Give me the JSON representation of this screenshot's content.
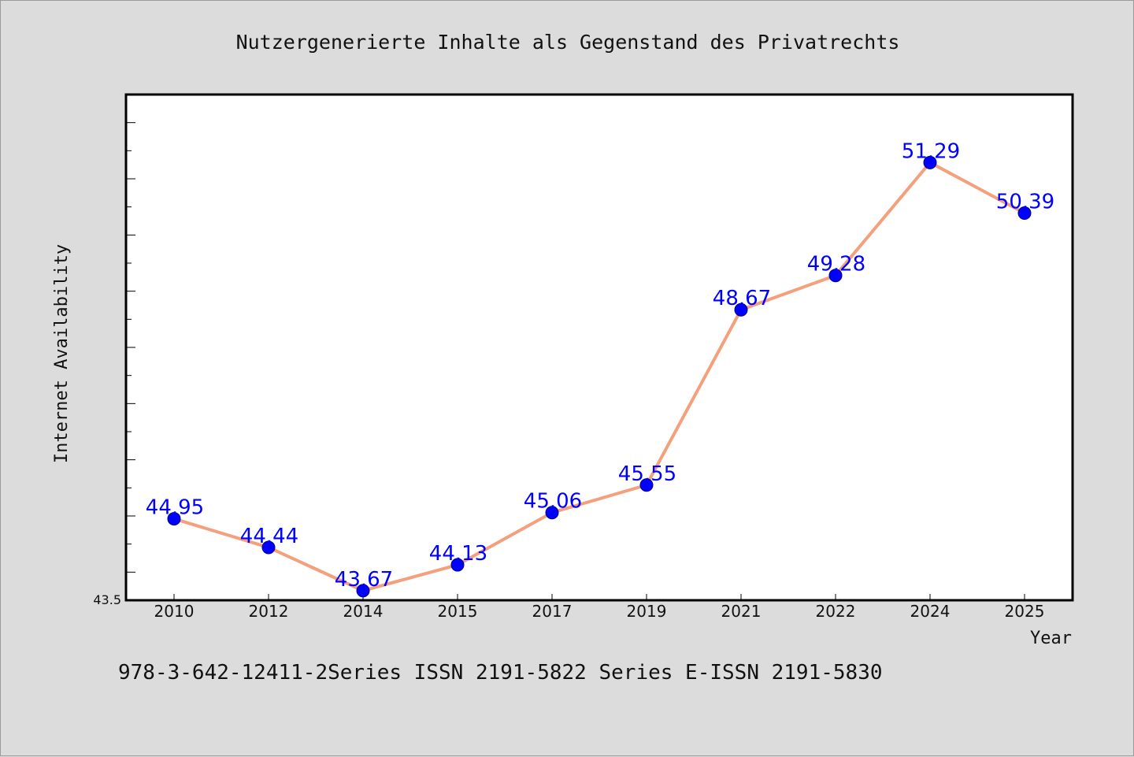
{
  "chart_data": {
    "type": "line",
    "title": "Nutzergenerierte Inhalte als Gegenstand des Privatrechts",
    "xlabel": "Year",
    "ylabel": "Internet Availability",
    "categories": [
      "2010",
      "2012",
      "2014",
      "2015",
      "2017",
      "2019",
      "2021",
      "2022",
      "2024",
      "2025"
    ],
    "series": [
      {
        "values": [
          44.95,
          44.44,
          43.67,
          44.13,
          45.06,
          45.55,
          48.67,
          49.28,
          51.29,
          50.39
        ]
      }
    ],
    "ylim": [
      43.5,
      52.5
    ],
    "y_tick_labels": [
      "43.5"
    ],
    "data_labels": [
      "44.95",
      "44.44",
      "43.67",
      "44.13",
      "45.06",
      "45.55",
      "48.67",
      "49.28",
      "51.29",
      "50.39"
    ],
    "grid": false,
    "line_color": "#f4a07c",
    "marker_color": "#0000ff",
    "label_color": "#0000ff"
  },
  "footer_text": "978-3-642-12411-2Series ISSN 2191-5822 Series E-ISSN 2191-5830"
}
